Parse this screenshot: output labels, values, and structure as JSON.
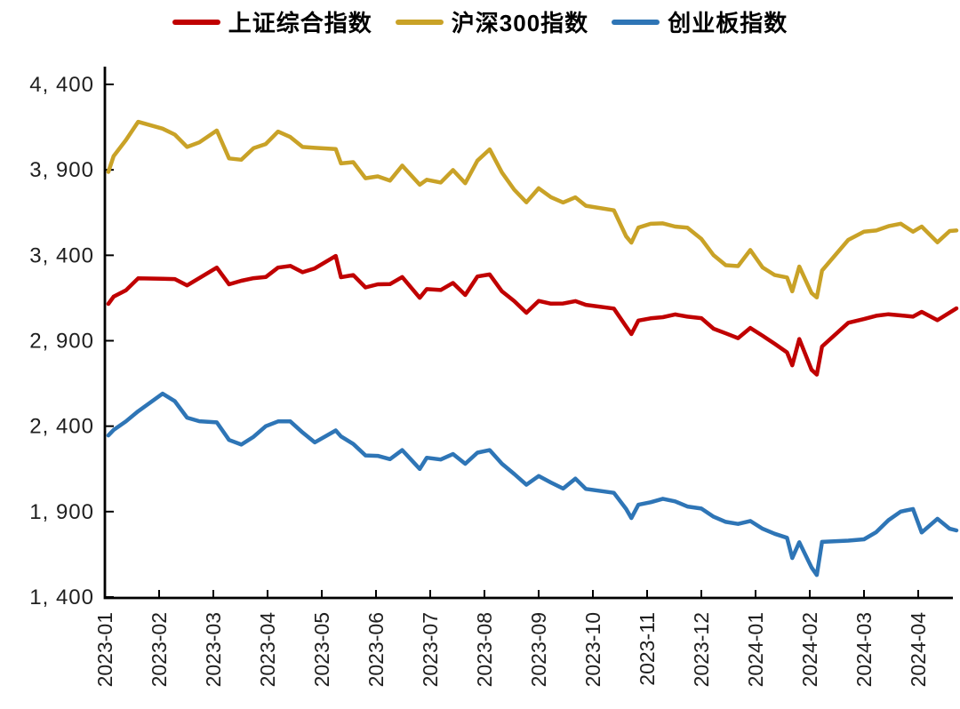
{
  "legend": {
    "items": [
      {
        "id": "sse",
        "label": "上证综合指数",
        "color": "#C00000"
      },
      {
        "id": "csi300",
        "label": "沪深300指数",
        "color": "#C9A227"
      },
      {
        "id": "chinext",
        "label": "创业板指数",
        "color": "#2E75B6"
      }
    ]
  },
  "chart_data": {
    "type": "line",
    "title": "",
    "xlabel": "",
    "ylabel": "",
    "grid": false,
    "legend_position": "top",
    "ylim": [
      1400,
      4400
    ],
    "y_ticks": [
      {
        "value": 4400,
        "label": "4, 400"
      },
      {
        "value": 3900,
        "label": "3, 900"
      },
      {
        "value": 3400,
        "label": "3, 400"
      },
      {
        "value": 2900,
        "label": "2, 900"
      },
      {
        "value": 2400,
        "label": "2, 400"
      },
      {
        "value": 1900,
        "label": "1, 900"
      },
      {
        "value": 1400,
        "label": "1, 400"
      }
    ],
    "x_ticks": [
      "2023-01",
      "2023-02",
      "2023-03",
      "2023-04",
      "2023-05",
      "2023-06",
      "2023-07",
      "2023-08",
      "2023-09",
      "2023-10",
      "2023-11",
      "2023-12",
      "2024-01",
      "2024-02",
      "2024-03",
      "2024-04"
    ],
    "x": [
      "2023-01-03",
      "2023-01-06",
      "2023-01-13",
      "2023-01-20",
      "2023-02-03",
      "2023-02-10",
      "2023-02-17",
      "2023-02-24",
      "2023-03-03",
      "2023-03-10",
      "2023-03-17",
      "2023-03-24",
      "2023-03-31",
      "2023-04-07",
      "2023-04-14",
      "2023-04-21",
      "2023-04-28",
      "2023-05-09",
      "2023-05-12",
      "2023-05-19",
      "2023-05-26",
      "2023-06-02",
      "2023-06-09",
      "2023-06-16",
      "2023-06-26",
      "2023-06-30",
      "2023-07-07",
      "2023-07-14",
      "2023-07-21",
      "2023-07-28",
      "2023-08-04",
      "2023-08-11",
      "2023-08-18",
      "2023-08-25",
      "2023-09-01",
      "2023-09-08",
      "2023-09-15",
      "2023-09-22",
      "2023-09-28",
      "2023-10-13",
      "2023-10-20",
      "2023-10-23",
      "2023-10-27",
      "2023-11-03",
      "2023-11-10",
      "2023-11-17",
      "2023-11-24",
      "2023-12-01",
      "2023-12-08",
      "2023-12-15",
      "2023-12-22",
      "2023-12-29",
      "2024-01-05",
      "2024-01-12",
      "2024-01-19",
      "2024-01-22",
      "2024-01-26",
      "2024-02-02",
      "2024-02-05",
      "2024-02-08",
      "2024-02-23",
      "2024-03-01",
      "2024-03-08",
      "2024-03-15",
      "2024-03-22",
      "2024-03-29",
      "2024-04-03",
      "2024-04-12",
      "2024-04-19",
      "2024-04-26"
    ],
    "series": [
      {
        "id": "sse",
        "name": "上证综合指数",
        "color": "#C00000",
        "values": [
          3116,
          3158,
          3195,
          3265,
          3263,
          3261,
          3224,
          3267,
          3328,
          3230,
          3251,
          3266,
          3273,
          3328,
          3338,
          3301,
          3323,
          3396,
          3272,
          3284,
          3212,
          3230,
          3231,
          3273,
          3151,
          3202,
          3197,
          3238,
          3168,
          3276,
          3288,
          3189,
          3132,
          3064,
          3133,
          3117,
          3118,
          3132,
          3110,
          3088,
          2983,
          2939,
          3018,
          3031,
          3038,
          3054,
          3041,
          3032,
          2970,
          2943,
          2915,
          2975,
          2929,
          2882,
          2832,
          2756,
          2910,
          2730,
          2702,
          2866,
          3005,
          3027,
          3046,
          3055,
          3048,
          3041,
          3069,
          3020,
          3065,
          3089
        ]
      },
      {
        "id": "csi300",
        "name": "沪深300指数",
        "color": "#C9A227",
        "values": [
          3888,
          3980,
          4074,
          4181,
          4141,
          4106,
          4034,
          4061,
          4130,
          3967,
          3959,
          4027,
          4051,
          4124,
          4092,
          4034,
          4029,
          4022,
          3938,
          3945,
          3851,
          3862,
          3837,
          3925,
          3813,
          3842,
          3826,
          3899,
          3822,
          3954,
          4020,
          3884,
          3784,
          3710,
          3792,
          3740,
          3709,
          3739,
          3690,
          3663,
          3511,
          3474,
          3562,
          3584,
          3587,
          3568,
          3562,
          3496,
          3400,
          3342,
          3337,
          3431,
          3329,
          3284,
          3270,
          3189,
          3334,
          3179,
          3153,
          3311,
          3490,
          3538,
          3545,
          3570,
          3585,
          3538,
          3568,
          3476,
          3542,
          3545
        ]
      },
      {
        "id": "chinext",
        "name": "创业板指数",
        "color": "#2E75B6",
        "values": [
          2346,
          2378,
          2428,
          2487,
          2590,
          2546,
          2450,
          2429,
          2422,
          2319,
          2292,
          2338,
          2400,
          2428,
          2428,
          2363,
          2305,
          2375,
          2340,
          2296,
          2229,
          2226,
          2207,
          2260,
          2150,
          2215,
          2205,
          2237,
          2180,
          2245,
          2260,
          2180,
          2120,
          2057,
          2108,
          2070,
          2035,
          2093,
          2033,
          2010,
          1915,
          1862,
          1940,
          1955,
          1975,
          1960,
          1930,
          1918,
          1870,
          1840,
          1828,
          1845,
          1800,
          1770,
          1747,
          1628,
          1721,
          1573,
          1529,
          1723,
          1730,
          1738,
          1780,
          1850,
          1900,
          1915,
          1778,
          1858,
          1800,
          1790
        ]
      }
    ]
  },
  "style": {
    "axis_color": "#000000",
    "tick_label_color": "#1f1f1f",
    "background": "#ffffff"
  }
}
